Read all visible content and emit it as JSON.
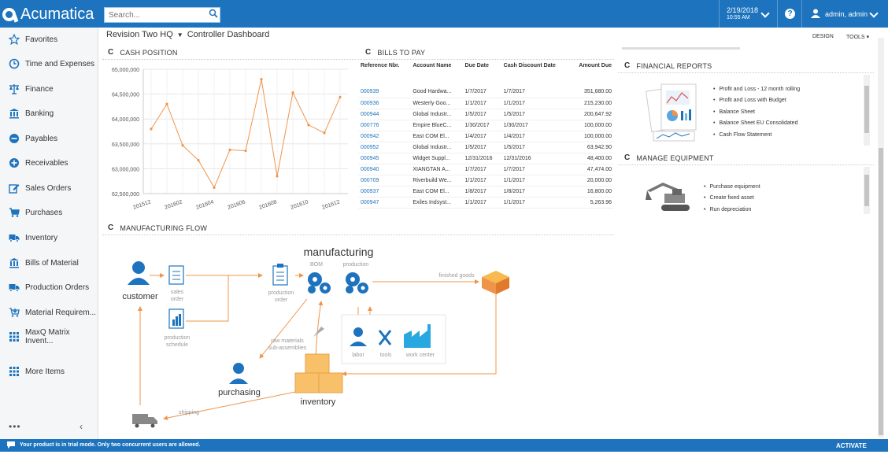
{
  "app": {
    "brand": "Acumatica",
    "accent_color": "#1d73bd"
  },
  "topbar": {
    "search_placeholder": "Search...",
    "date": "2/19/2018",
    "time": "10:55 AM",
    "help_label": "?",
    "user": "admin, admin"
  },
  "sidebar": {
    "items": [
      {
        "label": "Favorites",
        "icon": "star-icon"
      },
      {
        "label": "Time and Expenses",
        "icon": "clock-icon"
      },
      {
        "label": "Finance",
        "icon": "scales-icon"
      },
      {
        "label": "Banking",
        "icon": "bank-icon"
      },
      {
        "label": "Payables",
        "icon": "minus-circle-icon"
      },
      {
        "label": "Receivables",
        "icon": "plus-circle-icon"
      },
      {
        "label": "Sales Orders",
        "icon": "edit-icon"
      },
      {
        "label": "Purchases",
        "icon": "cart-icon"
      },
      {
        "label": "Inventory",
        "icon": "truck-icon"
      },
      {
        "label": "Bills of Material",
        "icon": "bank-icon"
      },
      {
        "label": "Production Orders",
        "icon": "truck-icon"
      },
      {
        "label": "Material Requirem...",
        "icon": "cart-down-icon"
      },
      {
        "label": "MaxQ Matrix Invent...",
        "icon": "grid-icon"
      }
    ],
    "more": "More Items",
    "dots": "•••",
    "collapse": "‹"
  },
  "header": {
    "company": "Revision Two HQ",
    "page": "Controller Dashboard",
    "design": "DESIGN",
    "tools": "TOOLS"
  },
  "widgets": {
    "cash_title": "CASH POSITION",
    "bills_title": "BILLS TO PAY",
    "flow_title": "MANUFACTURING FLOW",
    "fin_title": "FINANCIAL REPORTS",
    "equip_title": "MANAGE EQUIPMENT",
    "refresh": "C"
  },
  "chart_data": {
    "type": "line",
    "title": "CASH POSITION",
    "x_tick_labels": [
      "201512",
      "201602",
      "201604",
      "201606",
      "201608",
      "201610",
      "201612"
    ],
    "y_tick_labels": [
      "62,500,000",
      "63,000,000",
      "63,500,000",
      "64,000,000",
      "64,500,000",
      "65,000,000"
    ],
    "ylim": [
      62500000,
      65000000
    ],
    "grid": true,
    "series": [
      {
        "color": "#f0944a",
        "values": [
          63800000,
          64300000,
          63470000,
          63170000,
          62620000,
          63380000,
          63360000,
          64800000,
          62850000,
          64530000,
          63880000,
          63720000,
          64440000
        ]
      }
    ]
  },
  "bills": {
    "columns": [
      "Reference Nbr.",
      "Account Name",
      "Due Date",
      "Cash Discount Date",
      "Amount Due"
    ],
    "rows": [
      [
        "000939",
        "Good Hardwa...",
        "1/7/2017",
        "1/7/2017",
        "351,680.00"
      ],
      [
        "000936",
        "Westerly Goo...",
        "1/1/2017",
        "1/1/2017",
        "215,230.00"
      ],
      [
        "000944",
        "Global Industr...",
        "1/5/2017",
        "1/5/2017",
        "200,647.92"
      ],
      [
        "000776",
        "Empire BlueC...",
        "1/30/2017",
        "1/30/2017",
        "100,000.00"
      ],
      [
        "000942",
        "East COM El...",
        "1/4/2017",
        "1/4/2017",
        "100,000.00"
      ],
      [
        "000952",
        "Global Industr...",
        "1/5/2017",
        "1/5/2017",
        "63,942.90"
      ],
      [
        "000945",
        "Widget Suppl...",
        "12/31/2016",
        "12/31/2016",
        "48,400.00"
      ],
      [
        "000940",
        "XIANGTAN A...",
        "1/7/2017",
        "1/7/2017",
        "47,474.00"
      ],
      [
        "000709",
        "Riverbuild We...",
        "1/1/2017",
        "1/1/2017",
        "20,000.00"
      ],
      [
        "000937",
        "East COM El...",
        "1/8/2017",
        "1/8/2017",
        "16,800.00"
      ],
      [
        "000947",
        "Exiles Indsyst...",
        "1/1/2017",
        "1/1/2017",
        "5,263.96"
      ]
    ]
  },
  "flow": {
    "manufacturing": "manufacturing",
    "bom": "BOM",
    "production": "production",
    "customer": "customer",
    "sales_order": "sales\norder",
    "production_order": "production\norder",
    "production_schedule": "production\nschedule",
    "finished_goods": "finished goods",
    "raw_materials": "raw materials\nsub-assemblies",
    "labor": "labor",
    "tools": "tools",
    "work_center": "work center",
    "purchasing": "purchasing",
    "inventory": "inventory",
    "shipping": "shipping"
  },
  "financial_reports": [
    "Profit and Loss - 12 month rolling",
    "Profit and Loss with Budget",
    "Balance Sheet",
    "Balance Sheet EU Consolidated",
    "Cash Flow Statement"
  ],
  "equipment": [
    "Purchase equipment",
    "Create fixed asset",
    "Run depreciation"
  ],
  "status": {
    "trial": "Your product is in trial mode. Only two concurrent users are allowed.",
    "activate": "ACTIVATE"
  }
}
